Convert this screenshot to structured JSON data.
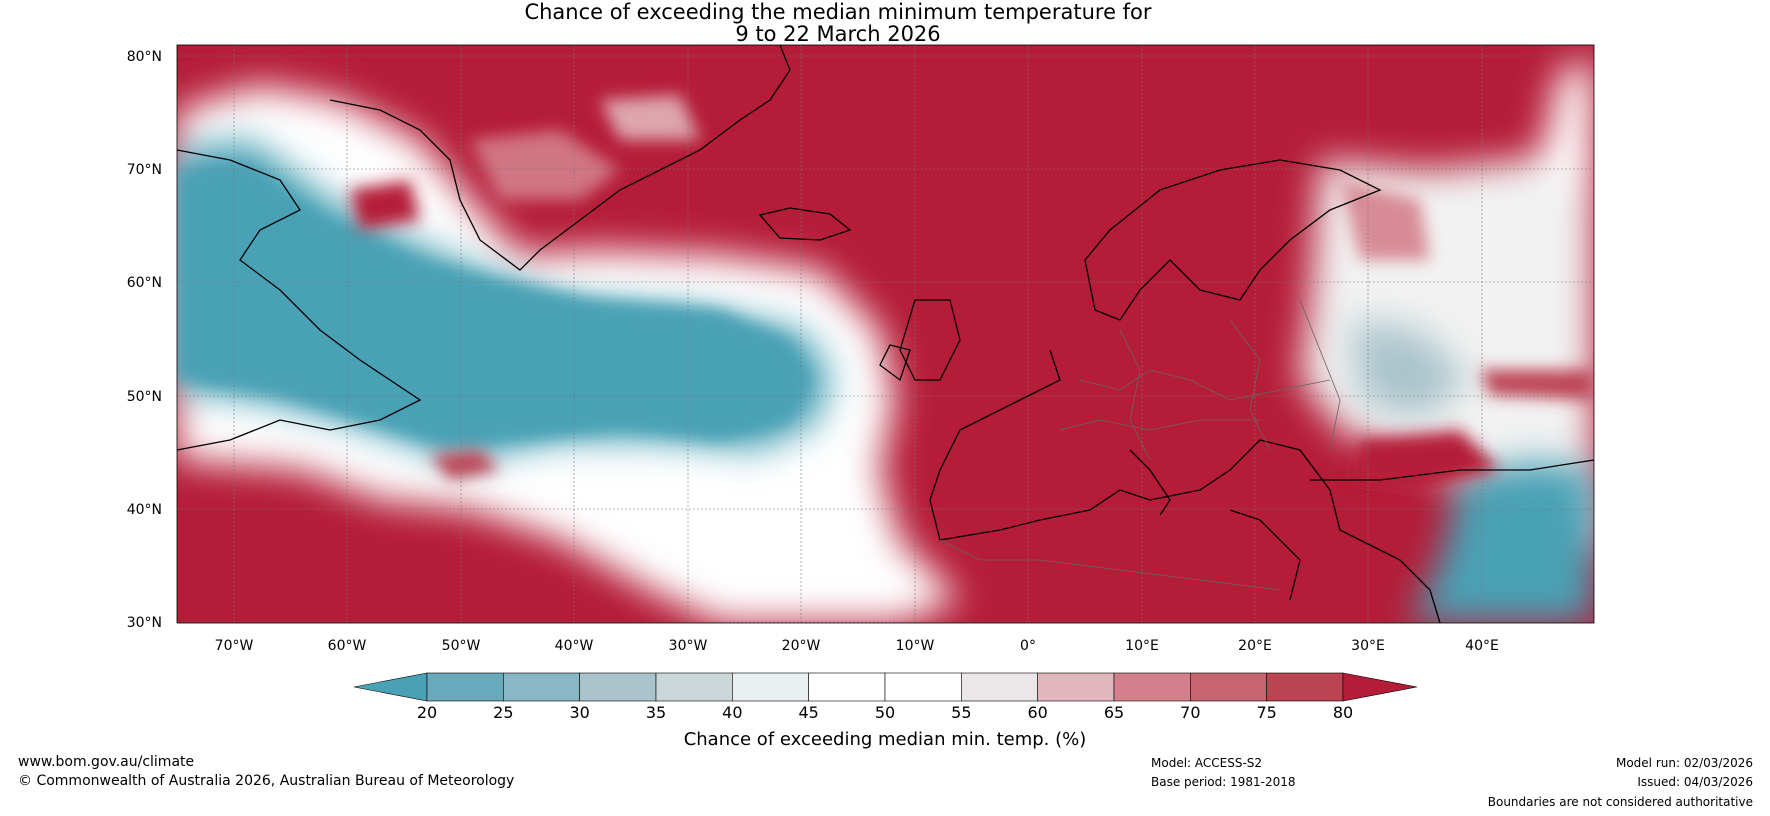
{
  "title_line1": "Chance of exceeding the median minimum temperature for",
  "title_line2": "9 to 22 March 2026",
  "lat_labels": [
    "80°N",
    "70°N",
    "60°N",
    "50°N",
    "40°N",
    "30°N"
  ],
  "lon_labels": [
    "70°W",
    "60°W",
    "50°W",
    "40°W",
    "30°W",
    "20°W",
    "10°W",
    "0°",
    "10°E",
    "20°E",
    "30°E",
    "40°E"
  ],
  "colorbar": {
    "ticks": [
      "20",
      "25",
      "30",
      "35",
      "40",
      "45",
      "50",
      "55",
      "60",
      "65",
      "70",
      "75",
      "80"
    ],
    "colors": [
      "#4aa1b5",
      "#68aabb",
      "#88b8c5",
      "#a9c4cb",
      "#ccd7da",
      "#e8f0f1",
      "#ffffff",
      "#ffffff",
      "#ebe6e7",
      "#e2b6bd",
      "#d4808c",
      "#c66470",
      "#bc4352"
    ],
    "low_color": "#4aa1b5",
    "high_color": "#b51c37",
    "label": "Chance of exceeding median min. temp. (%)"
  },
  "footer": {
    "website": "www.bom.gov.au/climate",
    "copyright": "© Commonwealth of Australia 2026, Australian Bureau of Meteorology",
    "model": "Model: ACCESS-S2",
    "base_period": "Base period: 1981-2018",
    "model_run": "Model run: 02/03/2026",
    "issued": "Issued: 04/03/2026",
    "disclaimer": "Boundaries are not considered authoritative"
  }
}
